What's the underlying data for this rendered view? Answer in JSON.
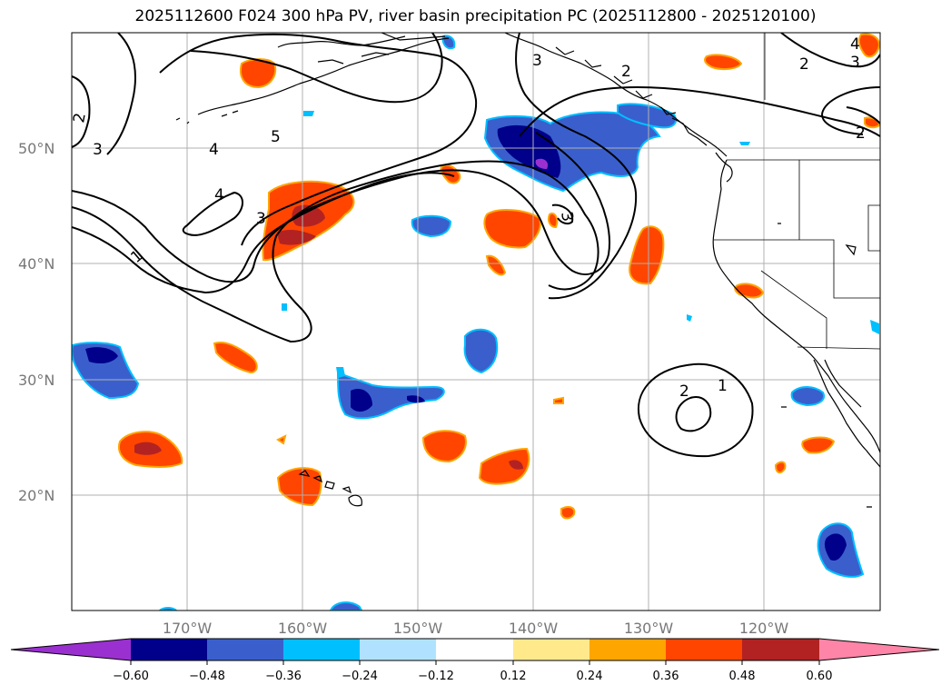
{
  "title": "2025112600 F024 300 hPa PV, river basin precipitation PC (2025112800 - 2025120100)",
  "axes": {
    "lat_labels": [
      "50°N",
      "40°N",
      "30°N",
      "20°N"
    ],
    "lon_labels": [
      "170°W",
      "160°W",
      "150°W",
      "140°W",
      "130°W",
      "120°W"
    ]
  },
  "colorbar": {
    "ticks": [
      "−0.60",
      "−0.48",
      "−0.36",
      "−0.24",
      "−0.12",
      "0.12",
      "0.24",
      "0.36",
      "0.48",
      "0.60"
    ],
    "colors": [
      "#9b30d0",
      "#00008b",
      "#3a5fcd",
      "#00bfff",
      "#b0e2ff",
      "#ffffff",
      "#ffe98a",
      "#ffa500",
      "#ff4500",
      "#b22222",
      "#ff85a8"
    ]
  },
  "contour_levels": [
    "1",
    "2",
    "3",
    "4",
    "5"
  ],
  "colors": {
    "grid": "#b0b0b0",
    "coast": "#000000",
    "label": "#777777"
  }
}
